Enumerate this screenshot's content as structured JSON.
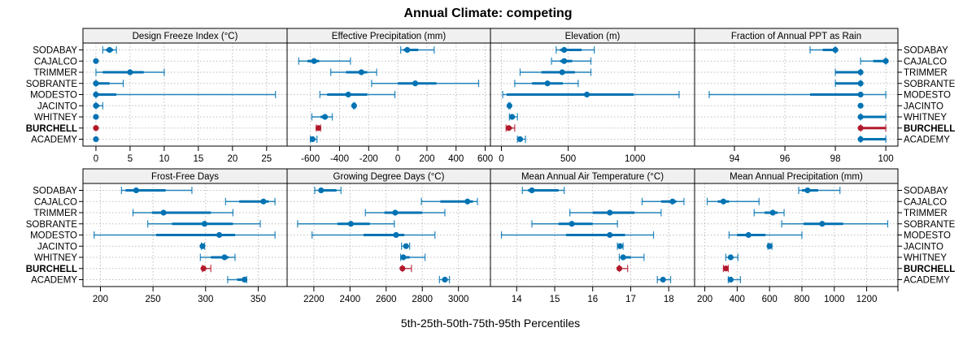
{
  "chart_data": {
    "type": "dotplot-percentiles",
    "title": "Annual Climate: competing",
    "xlabel": "5th-25th-50th-75th-95th Percentiles",
    "percentiles": [
      "p5",
      "p25",
      "p50",
      "p75",
      "p95"
    ],
    "rows": [
      "SODABAY",
      "CAJALCO",
      "TRIMMER",
      "SOBRANTE",
      "MODESTO",
      "JACINTO",
      "WHITNEY",
      "BURCHELL",
      "ACADEMY"
    ],
    "highlight_row": "BURCHELL",
    "colors": {
      "default": "#0072B2",
      "highlight": "#B2182B",
      "grid": "#BEBEBE",
      "strip": "#F0F0F0"
    },
    "legend": "none",
    "grid": true,
    "panels": [
      {
        "title": "Design Freeze Index (°C)",
        "xlim": [
          -1.9,
          28.0
        ],
        "ticks": [
          0,
          5,
          10,
          15,
          20,
          25
        ],
        "values": [
          [
            1,
            1.5,
            2,
            2.5,
            3
          ],
          [
            0,
            0,
            0,
            0,
            0
          ],
          [
            0,
            1,
            5,
            7,
            10
          ],
          [
            0,
            0,
            0,
            2,
            4
          ],
          [
            0,
            0,
            0,
            3,
            26.3
          ],
          [
            0,
            0,
            0,
            0.5,
            1
          ],
          [
            0,
            0,
            0,
            0,
            0
          ],
          [
            0,
            0,
            0,
            0,
            0
          ],
          [
            0,
            0,
            0,
            0,
            0
          ]
        ]
      },
      {
        "title": "Effective Precipitation (mm)",
        "xlim": [
          -760,
          636
        ],
        "ticks": [
          -600,
          -400,
          -200,
          0,
          200,
          400,
          600
        ],
        "values": [
          [
            20,
            40,
            65,
            140,
            250
          ],
          [
            -680,
            -620,
            -575,
            -540,
            -325
          ],
          [
            -460,
            -355,
            -250,
            -210,
            -145
          ],
          [
            -180,
            0,
            120,
            265,
            555
          ],
          [
            -535,
            -485,
            -340,
            -210,
            -20
          ],
          [
            -305,
            -303,
            -300,
            -298,
            -295
          ],
          [
            -590,
            -530,
            -500,
            -490,
            -450
          ],
          [
            -560,
            -555,
            -545,
            -540,
            -530
          ],
          [
            -600,
            -595,
            -585,
            -575,
            -555
          ]
        ]
      },
      {
        "title": "Elevation (m)",
        "xlim": [
          -82,
          1446
        ],
        "ticks": [
          0,
          500,
          1000
        ],
        "values": [
          [
            410,
            440,
            470,
            600,
            695
          ],
          [
            375,
            440,
            470,
            530,
            670
          ],
          [
            140,
            300,
            455,
            550,
            670
          ],
          [
            100,
            230,
            345,
            460,
            575
          ],
          [
            10,
            40,
            640,
            990,
            1330
          ],
          [
            55,
            57,
            60,
            63,
            65
          ],
          [
            60,
            70,
            80,
            90,
            120
          ],
          [
            35,
            45,
            55,
            80,
            100
          ],
          [
            120,
            130,
            140,
            160,
            180
          ]
        ]
      },
      {
        "title": "Fraction of Annual PPT as Rain",
        "xlim": [
          92.42,
          100.48
        ],
        "ticks": [
          94,
          96,
          98,
          100
        ],
        "values": [
          [
            97,
            97.5,
            98,
            98,
            98
          ],
          [
            99,
            99.5,
            100,
            100,
            100
          ],
          [
            98,
            98,
            99,
            99,
            99
          ],
          [
            98,
            98,
            99,
            99,
            99
          ],
          [
            93,
            97,
            99,
            99,
            100
          ],
          [
            99,
            99,
            99,
            99,
            99
          ],
          [
            99,
            99,
            99,
            100,
            100
          ],
          [
            99,
            99,
            99,
            100,
            100
          ],
          [
            99,
            99,
            99,
            100,
            100
          ]
        ]
      },
      {
        "title": "Frost-Free Days",
        "xlim": [
          183.4,
          377.5
        ],
        "ticks": [
          200,
          250,
          300,
          350
        ],
        "values": [
          [
            220,
            224,
            234,
            262,
            287
          ],
          [
            319,
            332,
            355,
            360,
            366
          ],
          [
            231,
            249,
            260,
            305,
            326
          ],
          [
            245,
            268,
            299,
            326,
            352
          ],
          [
            194,
            253,
            313,
            328,
            366
          ],
          [
            296,
            297,
            297,
            298,
            299
          ],
          [
            295,
            305,
            318,
            322,
            328
          ],
          [
            297,
            298,
            298,
            300,
            305
          ],
          [
            321,
            330,
            337,
            338,
            339
          ]
        ]
      },
      {
        "title": "Growing Degree Days (°C)",
        "xlim": [
          2052,
          3177
        ],
        "ticks": [
          2200,
          2400,
          2600,
          2800,
          3000
        ],
        "values": [
          [
            2205,
            2230,
            2240,
            2325,
            2350
          ],
          [
            2795,
            2900,
            3050,
            3080,
            3105
          ],
          [
            2485,
            2590,
            2650,
            2800,
            2925
          ],
          [
            2110,
            2330,
            2405,
            2510,
            2645
          ],
          [
            2190,
            2475,
            2655,
            2700,
            2870
          ],
          [
            2685,
            2700,
            2710,
            2720,
            2730
          ],
          [
            2680,
            2690,
            2695,
            2730,
            2815
          ],
          [
            2690,
            2690,
            2690,
            2700,
            2740
          ],
          [
            2895,
            2910,
            2925,
            2935,
            2950
          ]
        ]
      },
      {
        "title": "Mean Annual Air Temperature (°C)",
        "xlim": [
          13.31,
          18.68
        ],
        "ticks": [
          14,
          15,
          16,
          17,
          18
        ],
        "values": [
          [
            14.15,
            14.3,
            14.4,
            15.1,
            15.25
          ],
          [
            17.3,
            17.8,
            18.1,
            18.2,
            18.4
          ],
          [
            15.4,
            16.0,
            16.45,
            17.1,
            17.8
          ],
          [
            14.4,
            15.1,
            15.45,
            16.0,
            16.65
          ],
          [
            13.6,
            15.3,
            16.45,
            16.85,
            17.6
          ],
          [
            16.65,
            16.7,
            16.72,
            16.75,
            16.8
          ],
          [
            16.7,
            16.75,
            16.8,
            17.0,
            17.35
          ],
          [
            16.7,
            16.7,
            16.7,
            16.75,
            16.92
          ],
          [
            17.7,
            17.8,
            17.85,
            17.9,
            18.05
          ]
        ]
      },
      {
        "title": "Mean Annual Precipitation (mm)",
        "xlim": [
          137,
          1393
        ],
        "ticks": [
          200,
          400,
          600,
          800,
          1000,
          1200
        ],
        "values": [
          [
            780,
            800,
            835,
            900,
            1035
          ],
          [
            215,
            280,
            315,
            350,
            535
          ],
          [
            505,
            570,
            620,
            650,
            690
          ],
          [
            675,
            810,
            925,
            1055,
            1330
          ],
          [
            350,
            400,
            470,
            575,
            800
          ],
          [
            590,
            595,
            600,
            605,
            615
          ],
          [
            330,
            345,
            360,
            375,
            405
          ],
          [
            315,
            320,
            330,
            340,
            345
          ],
          [
            345,
            350,
            360,
            375,
            420
          ]
        ]
      }
    ]
  }
}
